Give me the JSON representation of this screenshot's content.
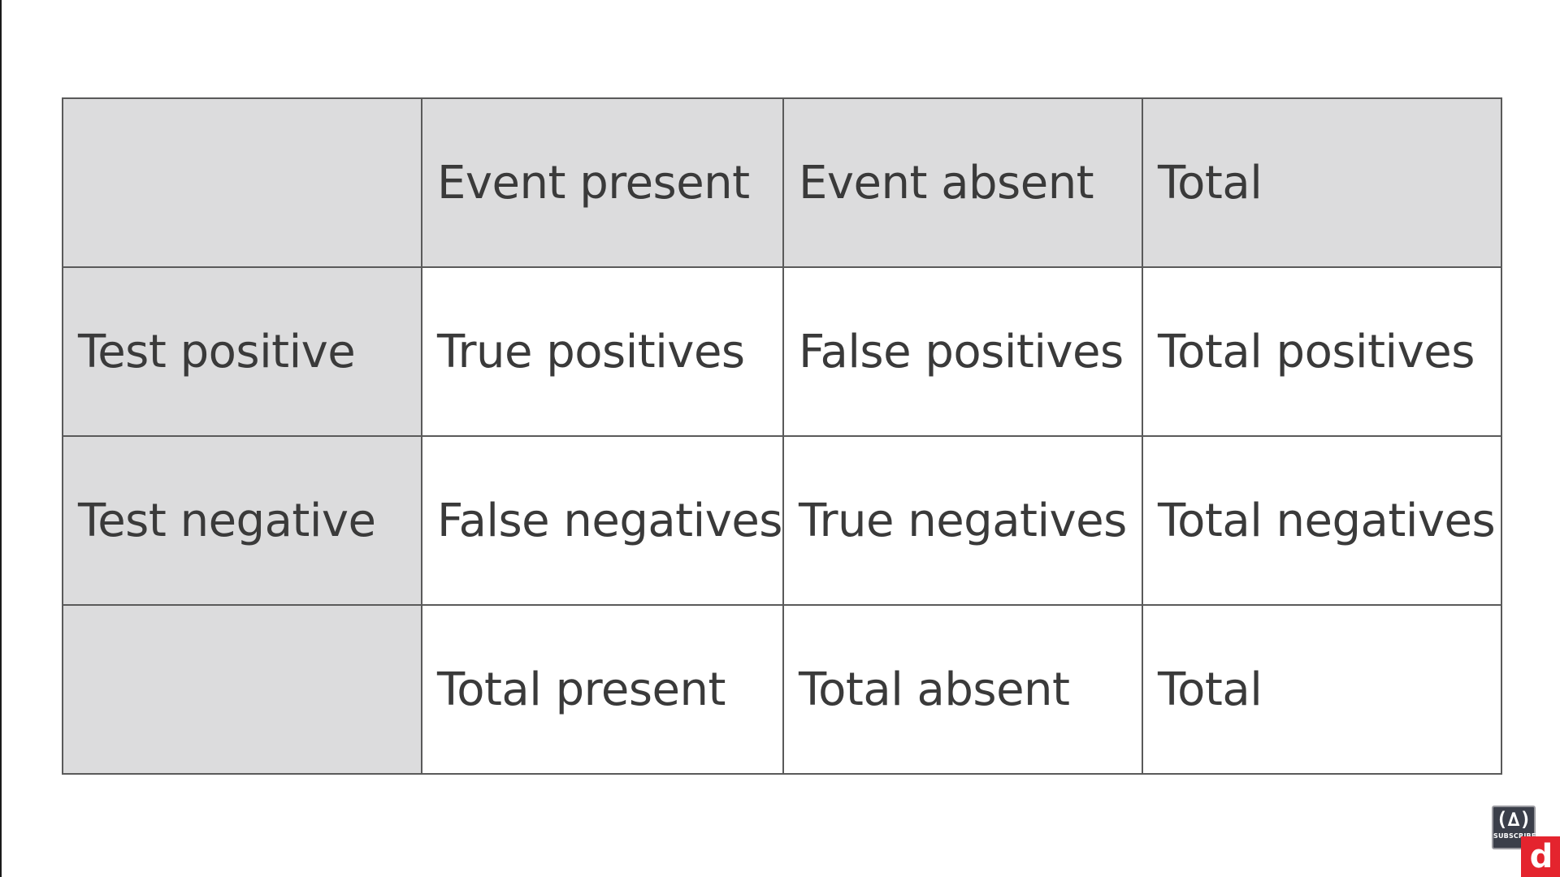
{
  "table": {
    "header": [
      "",
      "Event present",
      "Event absent",
      "Total"
    ],
    "rows": [
      [
        "Test positive",
        "True positives",
        "False positives",
        "Total positives"
      ],
      [
        "Test negative",
        "False negatives",
        "True negatives",
        "Total negatives"
      ],
      [
        "",
        "Total present",
        "Total absent",
        "Total"
      ]
    ]
  },
  "overlay": {
    "subscribe_icon": "flame-icon",
    "subscribe_label": "SUBSCRIBE",
    "brand_letter": "d"
  },
  "colors": {
    "header_shade": "#dcdcdd",
    "border": "#5a5a5a",
    "text": "#3a3a3a",
    "brand_red": "#e4242e"
  }
}
